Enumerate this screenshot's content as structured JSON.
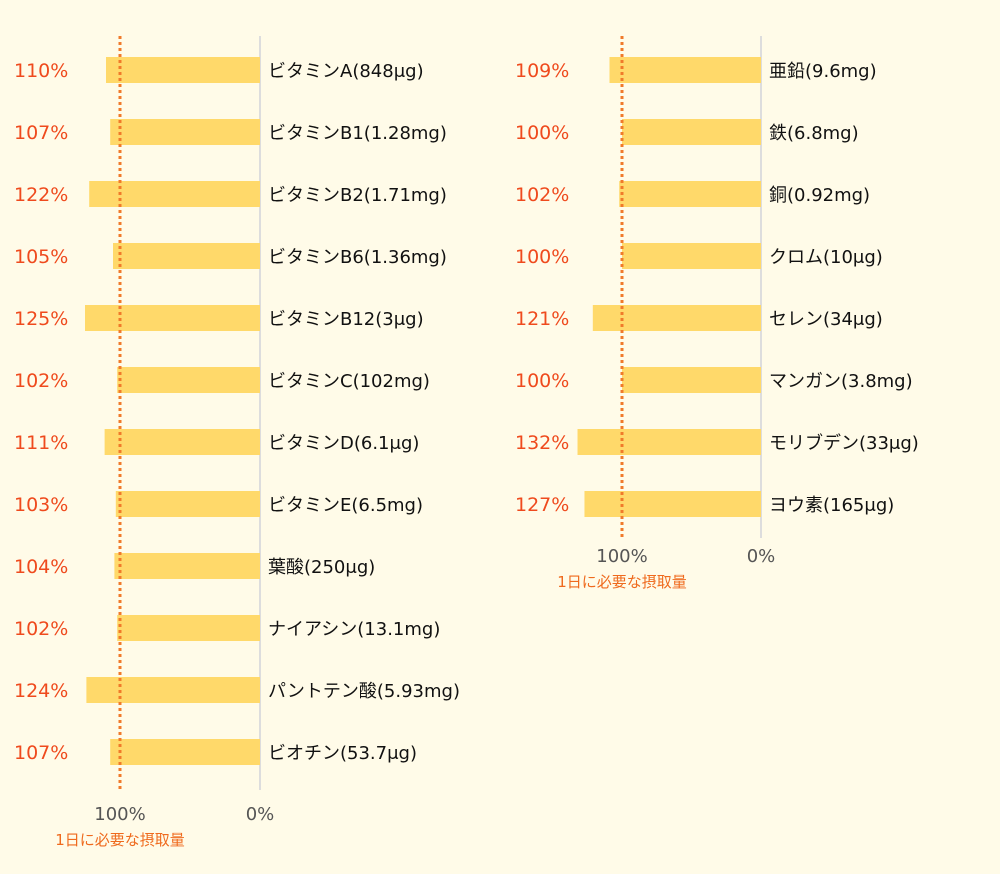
{
  "colors": {
    "background": "#fffbe8",
    "bar": "#ffd96a",
    "percent_text": "#ef4a1d",
    "reference_line": "#f07a2a",
    "axis_line": "#dddddd"
  },
  "chart_data": [
    {
      "type": "bar",
      "orientation": "horizontal-right-to-left",
      "categories": [
        "ビタミンA(848μg)",
        "ビタミンB1(1.28mg)",
        "ビタミンB2(1.71mg)",
        "ビタミンB6(1.36mg)",
        "ビタミンB12(3μg)",
        "ビタミンC(102mg)",
        "ビタミンD(6.1μg)",
        "ビタミンE(6.5mg)",
        "葉酸(250μg)",
        "ナイアシン(13.1mg)",
        "パントテン酸(5.93mg)",
        "ビオチン(53.7μg)"
      ],
      "values": [
        110,
        107,
        122,
        105,
        125,
        102,
        111,
        103,
        104,
        102,
        124,
        107
      ],
      "value_labels": [
        "110%",
        "107%",
        "122%",
        "105%",
        "125%",
        "102%",
        "111%",
        "103%",
        "104%",
        "102%",
        "124%",
        "107%"
      ],
      "xlim": [
        0,
        132
      ],
      "ticks": [
        {
          "value": 100,
          "label": "100%"
        },
        {
          "value": 0,
          "label": "0%"
        }
      ],
      "reference_line": {
        "value": 100,
        "label": "1日に必要な摂取量"
      }
    },
    {
      "type": "bar",
      "orientation": "horizontal-right-to-left",
      "categories": [
        "亜鉛(9.6mg)",
        "鉄(6.8mg)",
        "銅(0.92mg)",
        "クロム(10μg)",
        "セレン(34μg)",
        "マンガン(3.8mg)",
        "モリブデン(33μg)",
        "ヨウ素(165μg)"
      ],
      "values": [
        109,
        100,
        102,
        100,
        121,
        100,
        132,
        127
      ],
      "value_labels": [
        "109%",
        "100%",
        "102%",
        "100%",
        "121%",
        "100%",
        "132%",
        "127%"
      ],
      "xlim": [
        0,
        132
      ],
      "ticks": [
        {
          "value": 100,
          "label": "100%"
        },
        {
          "value": 0,
          "label": "0%"
        }
      ],
      "reference_line": {
        "value": 100,
        "label": "1日に必要な摂取量"
      }
    }
  ]
}
